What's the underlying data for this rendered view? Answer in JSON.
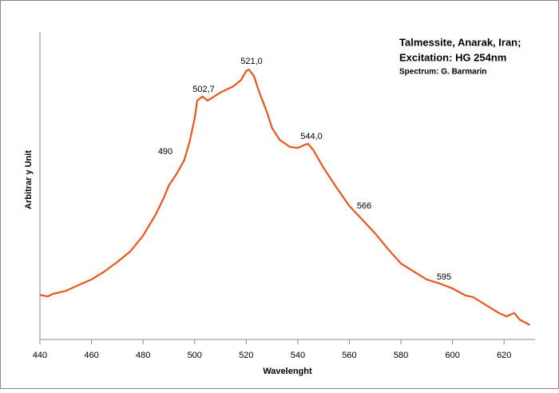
{
  "chart_data": {
    "type": "line",
    "title": "Talmessite, Anarak, Iran;",
    "subtitle": "Excitation:  HG 254nm",
    "credit": "Spectrum: G. Barmarin",
    "x_label": "Wavelenght",
    "y_label": "Arbitrar y Unit",
    "xlim": [
      440,
      632
    ],
    "xticks": [
      440,
      460,
      480,
      500,
      520,
      540,
      560,
      580,
      600,
      620
    ],
    "ylim": [
      0,
      100
    ],
    "x": [
      440,
      443,
      445,
      450,
      455,
      460,
      465,
      470,
      475,
      480,
      485,
      488,
      490,
      493,
      496,
      498,
      500,
      501,
      503,
      505,
      507,
      510,
      515,
      518,
      520,
      521,
      523,
      525,
      528,
      530,
      533,
      537,
      540,
      543,
      544,
      546,
      550,
      555,
      560,
      565,
      570,
      575,
      580,
      585,
      590,
      595,
      600,
      605,
      608,
      612,
      618,
      621,
      623,
      624,
      626,
      630
    ],
    "series": [
      {
        "name": "Talmessite",
        "color": "#e8561e",
        "values": [
          14.5,
          14.0,
          14.8,
          15.8,
          17.7,
          19.5,
          22.1,
          25.2,
          28.6,
          33.8,
          40.8,
          46.0,
          50.1,
          53.8,
          58.4,
          64.2,
          71.9,
          77.7,
          79.0,
          77.7,
          78.7,
          80.3,
          82.3,
          84.4,
          87.3,
          87.8,
          85.7,
          80.5,
          74.0,
          68.8,
          64.9,
          62.6,
          62.3,
          63.4,
          63.6,
          61.6,
          55.8,
          49.4,
          43.4,
          39.0,
          34.5,
          29.4,
          24.7,
          22.1,
          19.5,
          18.2,
          16.6,
          14.3,
          13.8,
          11.7,
          8.6,
          7.5,
          8.3,
          8.6,
          6.5,
          4.7
        ]
      }
    ],
    "annotations": [
      "490",
      "502,7",
      "521,0",
      "544,0",
      "566",
      "595"
    ]
  }
}
